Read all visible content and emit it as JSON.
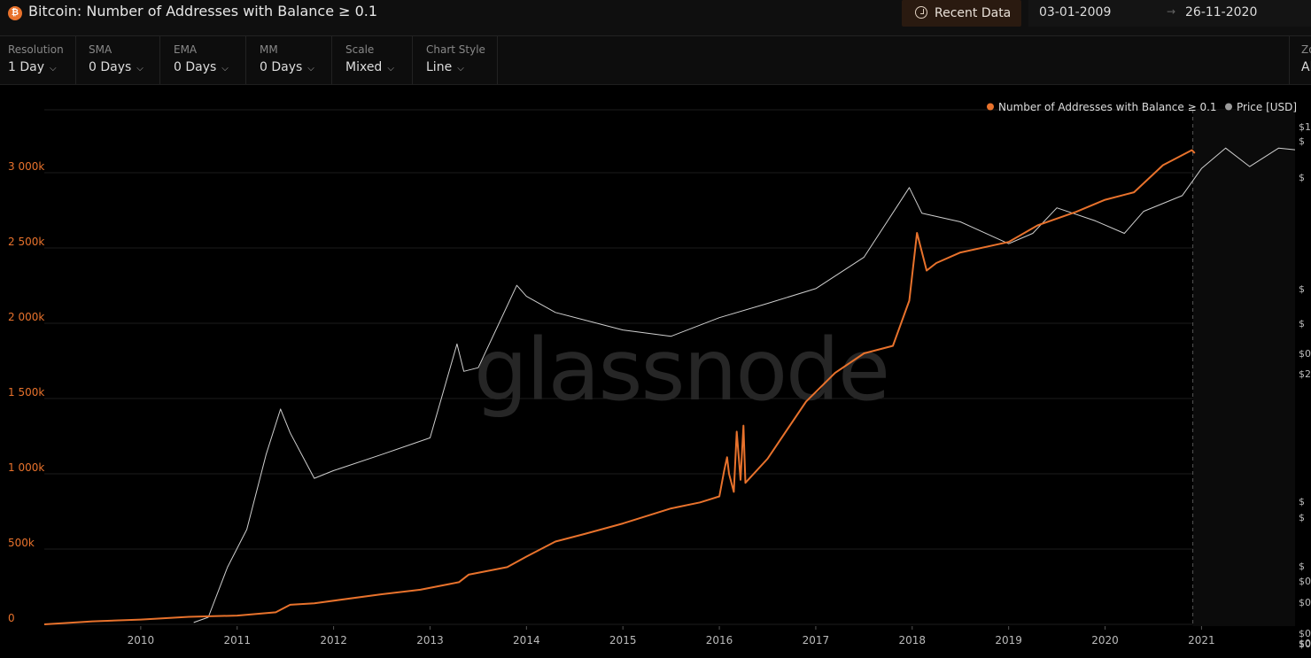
{
  "header": {
    "title": "Bitcoin: Number of Addresses with Balance ≥ 0.1",
    "coin_icon": "bitcoin-icon",
    "recent_data_label": "Recent Data",
    "date_from": "03-01-2009",
    "date_arrow": "→",
    "date_to": "26-11-2020"
  },
  "controls": [
    {
      "label": "Resolution",
      "value": "1 Day"
    },
    {
      "label": "SMA",
      "value": "0 Days"
    },
    {
      "label": "EMA",
      "value": "0 Days"
    },
    {
      "label": "MM",
      "value": "0 Days"
    },
    {
      "label": "Scale",
      "value": "Mixed"
    },
    {
      "label": "Chart Style",
      "value": "Line"
    }
  ],
  "zoom": {
    "label": "Zo",
    "value": "Al"
  },
  "watermark": "glassnode",
  "colors": {
    "addresses": "#e8722c",
    "price": "#cfcfcf",
    "background": "#000000"
  },
  "chart_data": {
    "type": "line",
    "title": "Bitcoin: Number of Addresses with Balance ≥ 0.1",
    "legend": [
      "Number of Addresses with Balance ≥ 0.1",
      "Price [USD]"
    ],
    "legend_position": "top-right",
    "x_tick_labels": [
      "2010",
      "2011",
      "2012",
      "2013",
      "2014",
      "2015",
      "2016",
      "2017",
      "2018",
      "2019",
      "2020",
      "2021"
    ],
    "y_left_tick_labels": [
      "0",
      "500k",
      "1 000k",
      "1 500k",
      "2 000k",
      "2 500k",
      "3 000k"
    ],
    "y_left_range": [
      0,
      3500000
    ],
    "y_right_tick_labels": [
      "$1",
      "$",
      "$",
      "$",
      "$",
      "$0",
      "$2",
      "$",
      "$",
      "$",
      "$0",
      "$0",
      "$0",
      "$0",
      "$0"
    ],
    "x_range": [
      2009.0,
      2021.97
    ],
    "right_axis_scale": "log",
    "series": [
      {
        "name": "Number of Addresses with Balance ≥ 0.1",
        "axis": "left",
        "x": [
          2009.0,
          2009.5,
          2010.0,
          2010.5,
          2011.0,
          2011.4,
          2011.55,
          2011.8,
          2012.5,
          2012.9,
          2013.3,
          2013.4,
          2013.8,
          2014.0,
          2014.3,
          2014.6,
          2015.0,
          2015.5,
          2015.8,
          2015.9,
          2016.0,
          2016.05,
          2016.08,
          2016.1,
          2016.15,
          2016.18,
          2016.22,
          2016.25,
          2016.27,
          2016.5,
          2016.9,
          2017.2,
          2017.5,
          2017.8,
          2017.97,
          2018.05,
          2018.15,
          2018.25,
          2018.5,
          2019.0,
          2019.3,
          2019.7,
          2020.0,
          2020.3,
          2020.6,
          2020.9,
          2020.93
        ],
        "y": [
          0,
          20000,
          32000,
          50000,
          58000,
          80000,
          130000,
          140000,
          200000,
          230000,
          280000,
          330000,
          380000,
          450000,
          550000,
          600000,
          670000,
          770000,
          810000,
          830000,
          850000,
          1020000,
          1110000,
          1000000,
          880000,
          1280000,
          960000,
          1320000,
          940000,
          1100000,
          1480000,
          1670000,
          1800000,
          1850000,
          2150000,
          2600000,
          2350000,
          2400000,
          2470000,
          2540000,
          2650000,
          2740000,
          2820000,
          2870000,
          3050000,
          3150000,
          3130000
        ]
      },
      {
        "name": "Price [USD]",
        "axis": "right",
        "x": [
          2010.55,
          2010.7,
          2010.9,
          2011.1,
          2011.3,
          2011.45,
          2011.55,
          2011.8,
          2012.0,
          2012.5,
          2013.0,
          2013.28,
          2013.35,
          2013.5,
          2013.9,
          2014.0,
          2014.3,
          2015.0,
          2015.5,
          2016.0,
          2016.5,
          2017.0,
          2017.5,
          2017.97,
          2018.1,
          2018.5,
          2019.0,
          2019.25,
          2019.5,
          2019.9,
          2020.2,
          2020.4,
          2020.8,
          2021.0,
          2021.25,
          2021.5,
          2021.8,
          2021.97
        ],
        "y": [
          0.06,
          0.07,
          0.3,
          0.9,
          8,
          30,
          15,
          4,
          5,
          8,
          13,
          200,
          90,
          100,
          1100,
          800,
          500,
          300,
          250,
          430,
          650,
          1000,
          2500,
          19000,
          9000,
          7000,
          3700,
          5000,
          10500,
          7200,
          5000,
          9500,
          15000,
          33000,
          60000,
          35000,
          60000,
          57000
        ]
      }
    ]
  }
}
